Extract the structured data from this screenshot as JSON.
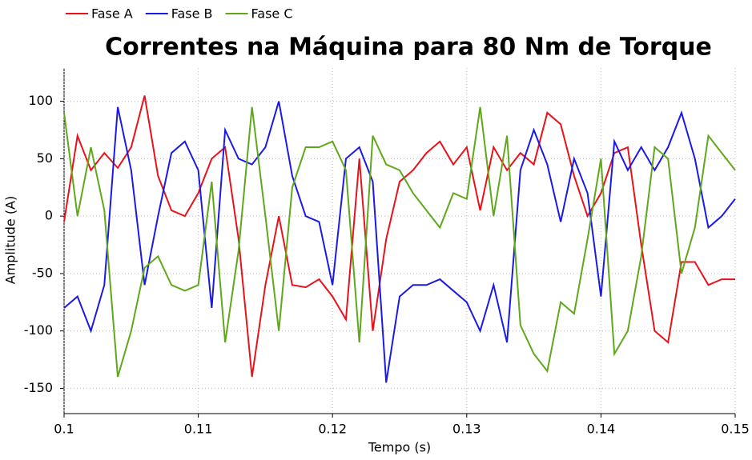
{
  "chart_data": {
    "type": "line",
    "title": "Correntes na Máquina para 80 Nm de Torque",
    "x_label": "Tempo (s)",
    "y_label": "Amplitude (A)",
    "x": [
      0.1,
      0.101,
      0.102,
      0.103,
      0.104,
      0.105,
      0.106,
      0.107,
      0.108,
      0.109,
      0.11,
      0.111,
      0.112,
      0.113,
      0.114,
      0.115,
      0.116,
      0.117,
      0.118,
      0.119,
      0.12,
      0.121,
      0.122,
      0.123,
      0.124,
      0.125,
      0.126,
      0.127,
      0.128,
      0.129,
      0.13,
      0.131,
      0.132,
      0.133,
      0.134,
      0.135,
      0.136,
      0.137,
      0.138,
      0.139,
      0.14,
      0.141,
      0.142,
      0.143,
      0.144,
      0.145,
      0.146,
      0.147,
      0.148,
      0.149,
      0.15
    ],
    "series": [
      {
        "name": "Fase A",
        "color": "#e8121a",
        "values": [
          -5,
          70,
          40,
          55,
          42,
          60,
          105,
          35,
          5,
          0,
          20,
          50,
          60,
          -20,
          -140,
          -60,
          0,
          -60,
          -62,
          -55,
          -70,
          -90,
          50,
          -100,
          -20,
          30,
          40,
          55,
          65,
          45,
          60,
          5,
          60,
          40,
          55,
          45,
          90,
          80,
          35,
          0,
          20,
          55,
          60,
          -25,
          -100,
          -110,
          -40,
          -40,
          -60,
          -55,
          -55
        ]
      },
      {
        "name": "Fase B",
        "color": "#1a1ae8",
        "values": [
          -80,
          -70,
          -100,
          -60,
          95,
          40,
          -60,
          0,
          55,
          65,
          40,
          -80,
          75,
          50,
          45,
          60,
          100,
          35,
          0,
          -5,
          -60,
          50,
          60,
          30,
          -145,
          -70,
          -60,
          -60,
          -55,
          -65,
          -75,
          -100,
          -60,
          -110,
          40,
          75,
          45,
          -5,
          50,
          20,
          -70,
          65,
          40,
          60,
          40,
          60,
          90,
          50,
          -10,
          0,
          15
        ]
      },
      {
        "name": "Fase C",
        "color": "#5ea81a",
        "values": [
          90,
          0,
          60,
          5,
          -140,
          -100,
          -45,
          -35,
          -60,
          -65,
          -60,
          30,
          -110,
          -30,
          95,
          0,
          -100,
          25,
          60,
          60,
          65,
          40,
          -110,
          70,
          45,
          40,
          20,
          5,
          -10,
          20,
          15,
          95,
          0,
          70,
          -95,
          -120,
          -135,
          -75,
          -85,
          -20,
          50,
          -120,
          -100,
          -35,
          60,
          50,
          -50,
          -10,
          70,
          55,
          40
        ]
      }
    ],
    "xlim": [
      0.1,
      0.15
    ],
    "xticks": [
      0.1,
      0.11,
      0.12,
      0.13,
      0.14,
      0.15
    ],
    "ylim": [
      -172,
      129
    ],
    "yticks": [
      -150,
      -100,
      -50,
      0,
      50,
      100
    ],
    "grid": true
  }
}
